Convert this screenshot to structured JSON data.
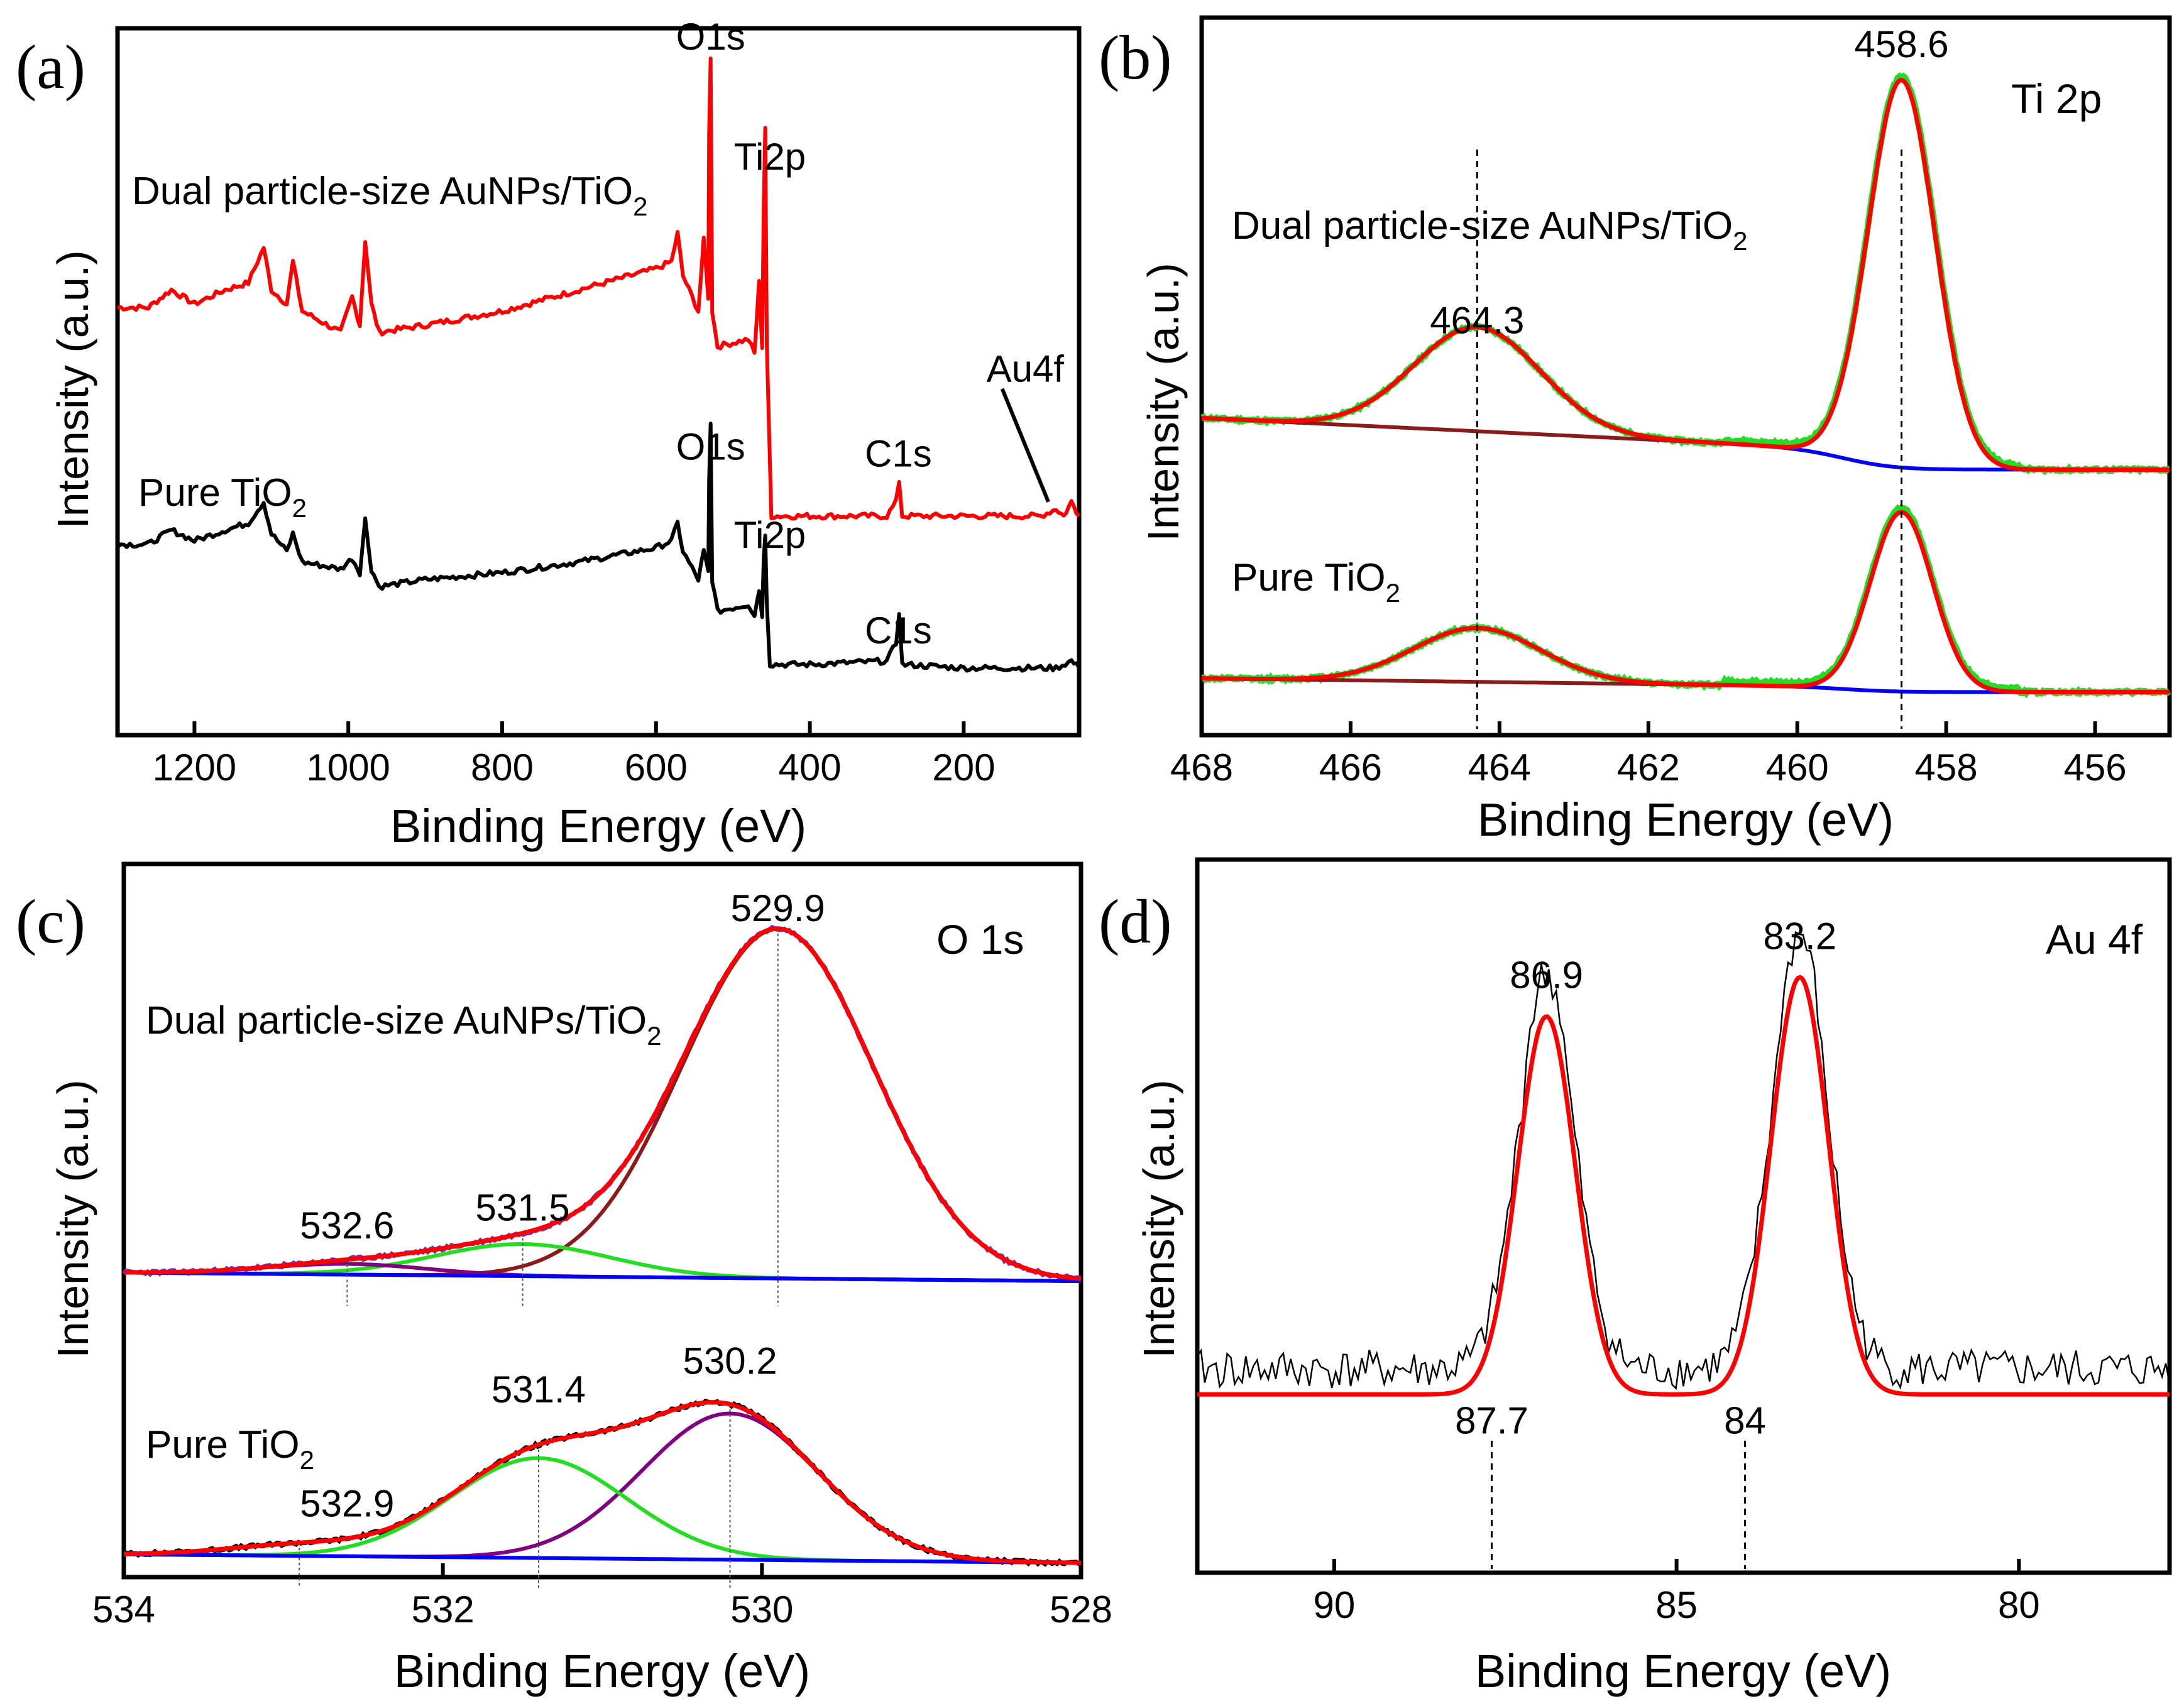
{
  "chart_data": [
    {
      "id": "a",
      "type": "line",
      "panel_label": "(a)",
      "xlabel": "Binding Energy (eV)",
      "ylabel": "Intensity (a.u.)",
      "xlim": [
        1300,
        50
      ],
      "x_reversed": true,
      "x_ticks": [
        1200,
        1000,
        800,
        600,
        400,
        200
      ],
      "ylim": [
        0,
        10
      ],
      "series": [
        {
          "name": "Dual particle-size AuNPs/TiO2",
          "label": "Dual particle-size AuNPs/TiO",
          "label_sub": "2",
          "color": "#ff0000",
          "points": [
            [
              1300,
              6.05
            ],
            [
              1260,
              6.05
            ],
            [
              1230,
              6.3
            ],
            [
              1200,
              6.1
            ],
            [
              1160,
              6.3
            ],
            [
              1130,
              6.4
            ],
            [
              1110,
              6.9
            ],
            [
              1100,
              6.3
            ],
            [
              1080,
              6.1
            ],
            [
              1072,
              6.7
            ],
            [
              1060,
              6.0
            ],
            [
              1010,
              5.7
            ],
            [
              995,
              6.2
            ],
            [
              985,
              5.8
            ],
            [
              978,
              7.0
            ],
            [
              970,
              6.1
            ],
            [
              960,
              5.7
            ],
            [
              900,
              5.8
            ],
            [
              800,
              6.0
            ],
            [
              700,
              6.3
            ],
            [
              600,
              6.6
            ],
            [
              580,
              6.7
            ],
            [
              572,
              7.1
            ],
            [
              565,
              6.5
            ],
            [
              545,
              6.0
            ],
            [
              538,
              7.0
            ],
            [
              532,
              6.2
            ],
            [
              531,
              8.5
            ],
            [
              529,
              9.6
            ],
            [
              527,
              6.0
            ],
            [
              520,
              5.5
            ],
            [
              480,
              5.6
            ],
            [
              472,
              5.4
            ],
            [
              466,
              6.4
            ],
            [
              462,
              5.5
            ],
            [
              460,
              7.5
            ],
            [
              458,
              8.6
            ],
            [
              456,
              5.5
            ],
            [
              450,
              3.1
            ],
            [
              400,
              3.1
            ],
            [
              300,
              3.1
            ],
            [
              288,
              3.3
            ],
            [
              284,
              3.6
            ],
            [
              280,
              3.1
            ],
            [
              200,
              3.1
            ],
            [
              100,
              3.1
            ],
            [
              80,
              3.2
            ],
            [
              70,
              3.1
            ],
            [
              60,
              3.3
            ],
            [
              50,
              3.1
            ]
          ]
        },
        {
          "name": "Pure TiO2",
          "label": "Pure TiO",
          "label_sub": "2",
          "color": "#000000",
          "points": [
            [
              1300,
              2.7
            ],
            [
              1260,
              2.7
            ],
            [
              1230,
              2.9
            ],
            [
              1200,
              2.75
            ],
            [
              1160,
              2.9
            ],
            [
              1130,
              3.0
            ],
            [
              1110,
              3.3
            ],
            [
              1100,
              2.85
            ],
            [
              1080,
              2.6
            ],
            [
              1072,
              2.85
            ],
            [
              1060,
              2.45
            ],
            [
              1010,
              2.35
            ],
            [
              995,
              2.5
            ],
            [
              985,
              2.3
            ],
            [
              978,
              3.05
            ],
            [
              970,
              2.35
            ],
            [
              960,
              2.1
            ],
            [
              900,
              2.2
            ],
            [
              800,
              2.3
            ],
            [
              700,
              2.45
            ],
            [
              600,
              2.65
            ],
            [
              580,
              2.75
            ],
            [
              572,
              3.0
            ],
            [
              565,
              2.6
            ],
            [
              545,
              2.2
            ],
            [
              538,
              2.6
            ],
            [
              532,
              2.3
            ],
            [
              531,
              3.6
            ],
            [
              529,
              4.4
            ],
            [
              527,
              2.2
            ],
            [
              520,
              1.75
            ],
            [
              480,
              1.85
            ],
            [
              472,
              1.7
            ],
            [
              466,
              2.05
            ],
            [
              462,
              1.7
            ],
            [
              460,
              2.5
            ],
            [
              458,
              2.85
            ],
            [
              456,
              1.9
            ],
            [
              452,
              1.0
            ],
            [
              400,
              1.0
            ],
            [
              300,
              1.05
            ],
            [
              288,
              1.3
            ],
            [
              284,
              1.75
            ],
            [
              280,
              1.0
            ],
            [
              200,
              0.95
            ],
            [
              100,
              0.95
            ],
            [
              80,
              0.95
            ],
            [
              60,
              1.05
            ],
            [
              50,
              0.95
            ]
          ]
        }
      ],
      "annotations": [
        {
          "text": "O1s",
          "x": 529,
          "y": 9.7
        },
        {
          "text": "Ti2p",
          "x": 452,
          "y": 8.0
        },
        {
          "text": "C1s",
          "x": 285,
          "y": 3.8
        },
        {
          "text": "Au4f",
          "x": 120,
          "y": 5.0
        },
        {
          "text": "O1s",
          "x": 529,
          "y": 3.9
        },
        {
          "text": "Ti2p",
          "x": 452,
          "y": 2.65
        },
        {
          "text": "C1s",
          "x": 285,
          "y": 1.3
        }
      ],
      "arrow": {
        "from": [
          150,
          4.9
        ],
        "to": [
          90,
          3.3
        ]
      }
    },
    {
      "id": "b",
      "type": "line",
      "panel_label": "(b)",
      "title": "Ti 2p",
      "xlabel": "Binding Energy (eV)",
      "ylabel": "Intensity (a.u.)",
      "xlim": [
        468,
        455
      ],
      "x_reversed": true,
      "x_ticks": [
        468,
        466,
        464,
        462,
        460,
        458,
        456
      ],
      "ylim": [
        0,
        10
      ],
      "peaks": [
        464.3,
        458.6
      ],
      "peak_labels": [
        {
          "text": "464.3",
          "x": 464.3
        },
        {
          "text": "458.6",
          "x": 458.6
        }
      ],
      "components": [
        {
          "sample": "Dual particle-size AuNPs/TiO2",
          "label": "Dual particle-size AuNPs/TiO",
          "label_sub": "2",
          "offset": 3.7,
          "heights": [
            1.45,
            5.4
          ],
          "widths": [
            0.85,
            0.45
          ],
          "bg_start": 0.45
        },
        {
          "sample": "Pure TiO2",
          "label": "Pure TiO",
          "label_sub": "2",
          "offset": 0.6,
          "heights": [
            0.75,
            2.5
          ],
          "widths": [
            0.85,
            0.42
          ],
          "bg_start": 0.12
        }
      ],
      "colors": {
        "raw": "#22dd22",
        "fit": "#ff0000",
        "background": "#8b1a1a",
        "baseline": "#0000ff"
      }
    },
    {
      "id": "c",
      "type": "line",
      "panel_label": "(c)",
      "title": "O 1s",
      "xlabel": "Binding Energy (eV)",
      "ylabel": "Intensity (a.u.)",
      "xlim": [
        534,
        528
      ],
      "x_reversed": true,
      "x_ticks": [
        534,
        532,
        530,
        528
      ],
      "ylim": [
        0,
        10
      ],
      "components": [
        {
          "sample": "Dual particle-size AuNPs/TiO2",
          "label": "Dual particle-size AuNPs/TiO",
          "label_sub": "2",
          "offset": 4.15,
          "peaks": [
            {
              "center": 529.9,
              "height": 4.9,
              "width": 0.6,
              "color": "#8b1a1a",
              "label": "529.9"
            },
            {
              "center": 531.5,
              "height": 0.45,
              "width": 0.55,
              "color": "#22dd22",
              "label": "531.5"
            },
            {
              "center": 532.6,
              "height": 0.15,
              "width": 0.5,
              "color": "#800080",
              "label": "532.6"
            }
          ]
        },
        {
          "sample": "Pure TiO2",
          "label": "Pure TiO",
          "label_sub": "2",
          "offset": 0.2,
          "peaks": [
            {
              "center": 530.2,
              "height": 2.05,
              "width": 0.55,
              "color": "#800080",
              "label": "530.2"
            },
            {
              "center": 531.4,
              "height": 1.4,
              "width": 0.55,
              "color": "#22dd22",
              "label": "531.4"
            },
            {
              "center": 532.9,
              "height": 0.15,
              "width": 0.45,
              "color": "#0000ff",
              "label": "532.9"
            }
          ]
        }
      ],
      "colors": {
        "raw": "#000000",
        "fit": "#ff0000",
        "baseline": "#0000ff"
      }
    },
    {
      "id": "d",
      "type": "line",
      "panel_label": "(d)",
      "title": "Au 4f",
      "xlabel": "Binding Energy (eV)",
      "ylabel": "Intensity (a.u.)",
      "xlim": [
        92,
        77.8
      ],
      "x_reversed": true,
      "x_ticks": [
        90,
        85,
        80
      ],
      "ylim": [
        0,
        10
      ],
      "baseline": 2.5,
      "peaks": [
        {
          "center": 86.9,
          "height": 5.3,
          "width": 0.42,
          "label": "86.9"
        },
        {
          "center": 83.2,
          "height": 5.85,
          "width": 0.42,
          "label": "83.2"
        }
      ],
      "reference_lines": [
        {
          "x": 87.7,
          "label": "87.7"
        },
        {
          "x": 84,
          "label": "84"
        }
      ],
      "colors": {
        "raw": "#000000",
        "fit": "#ff0000"
      }
    }
  ]
}
